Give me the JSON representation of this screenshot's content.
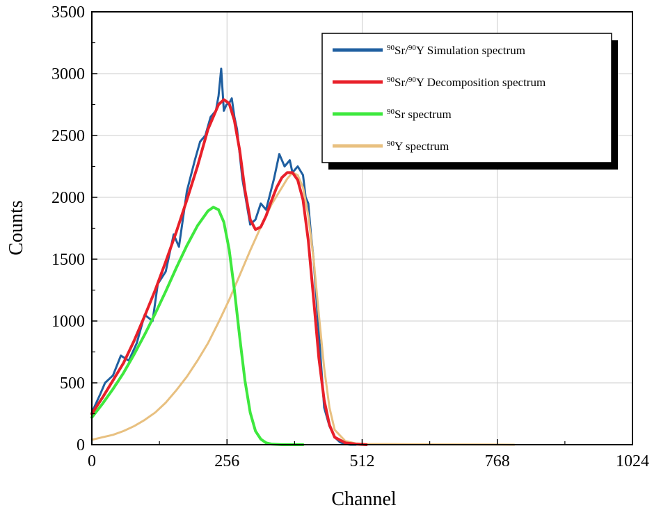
{
  "chart_data": {
    "type": "line",
    "title": "",
    "xlabel": "Channel",
    "ylabel": "Counts",
    "xlim": [
      0,
      1024
    ],
    "ylim": [
      0,
      3500
    ],
    "x_ticks": [
      0,
      256,
      512,
      768,
      1024
    ],
    "y_ticks": [
      0,
      500,
      1000,
      1500,
      2000,
      2500,
      3000,
      3500
    ],
    "grid": true,
    "legend_position": "top-right",
    "series": [
      {
        "name": "90Sr/90Y Simulation spectrum",
        "legend_sup1": "90",
        "legend_mid": "Sr/",
        "legend_sup2": "90",
        "legend_rest": "Y Simulation spectrum",
        "color": "#1f5fa0",
        "x": [
          0,
          15,
          25,
          40,
          55,
          70,
          85,
          100,
          115,
          125,
          140,
          155,
          165,
          180,
          195,
          205,
          215,
          225,
          235,
          240,
          245,
          250,
          255,
          260,
          265,
          270,
          275,
          285,
          300,
          310,
          320,
          330,
          345,
          355,
          365,
          375,
          380,
          390,
          400,
          405,
          410,
          415,
          420,
          430,
          440,
          450,
          460,
          470,
          480,
          490,
          500
        ],
        "values": [
          260,
          400,
          500,
          560,
          720,
          680,
          820,
          1050,
          1000,
          1300,
          1400,
          1700,
          1600,
          2050,
          2300,
          2450,
          2500,
          2650,
          2700,
          2820,
          3040,
          2700,
          2750,
          2760,
          2800,
          2650,
          2550,
          2150,
          1780,
          1820,
          1950,
          1900,
          2150,
          2350,
          2250,
          2300,
          2200,
          2250,
          2180,
          2000,
          1950,
          1700,
          1500,
          900,
          300,
          150,
          60,
          20,
          5,
          0,
          0
        ]
      },
      {
        "name": "90Sr/90Y Decomposition spectrum",
        "legend_sup1": "90",
        "legend_mid": "Sr/",
        "legend_sup2": "90",
        "legend_rest": "Y Decomposition spectrum",
        "color": "#e8202a",
        "x": [
          0,
          20,
          40,
          60,
          80,
          100,
          120,
          140,
          160,
          180,
          200,
          220,
          240,
          250,
          260,
          270,
          280,
          290,
          300,
          310,
          320,
          330,
          340,
          350,
          360,
          370,
          380,
          390,
          400,
          410,
          420,
          430,
          440,
          450,
          460,
          480,
          500,
          520
        ],
        "values": [
          250,
          380,
          520,
          660,
          840,
          1040,
          1250,
          1480,
          1720,
          1980,
          2250,
          2550,
          2750,
          2790,
          2760,
          2620,
          2380,
          2060,
          1820,
          1740,
          1760,
          1850,
          1970,
          2080,
          2160,
          2200,
          2200,
          2140,
          1980,
          1650,
          1180,
          700,
          360,
          160,
          60,
          15,
          5,
          0
        ]
      },
      {
        "name": "90Sr spectrum",
        "legend_sup1": "90",
        "legend_mid": "Sr spectrum",
        "legend_sup2": "",
        "legend_rest": "",
        "color": "#3ee83e",
        "x": [
          0,
          20,
          40,
          60,
          80,
          100,
          120,
          140,
          160,
          180,
          200,
          220,
          230,
          240,
          250,
          260,
          270,
          280,
          290,
          300,
          310,
          320,
          330,
          340,
          360,
          400
        ],
        "values": [
          220,
          330,
          450,
          580,
          730,
          890,
          1060,
          1240,
          1430,
          1610,
          1770,
          1890,
          1920,
          1900,
          1800,
          1580,
          1250,
          870,
          520,
          260,
          110,
          45,
          15,
          5,
          0,
          0
        ]
      },
      {
        "name": "90Y spectrum",
        "legend_sup1": "90",
        "legend_mid": "Y spectrum",
        "legend_sup2": "",
        "legend_rest": "",
        "color": "#e8c080",
        "x": [
          0,
          20,
          40,
          60,
          80,
          100,
          120,
          140,
          160,
          180,
          200,
          220,
          240,
          260,
          280,
          300,
          320,
          340,
          360,
          370,
          380,
          390,
          400,
          410,
          420,
          430,
          440,
          450,
          460,
          480,
          500,
          520,
          560,
          620,
          680,
          760,
          800
        ],
        "values": [
          40,
          60,
          80,
          110,
          150,
          200,
          260,
          340,
          440,
          550,
          680,
          820,
          990,
          1170,
          1370,
          1570,
          1760,
          1940,
          2080,
          2150,
          2200,
          2180,
          2080,
          1850,
          1500,
          1050,
          620,
          300,
          120,
          30,
          10,
          5,
          5,
          3,
          2,
          1,
          0
        ]
      }
    ]
  }
}
